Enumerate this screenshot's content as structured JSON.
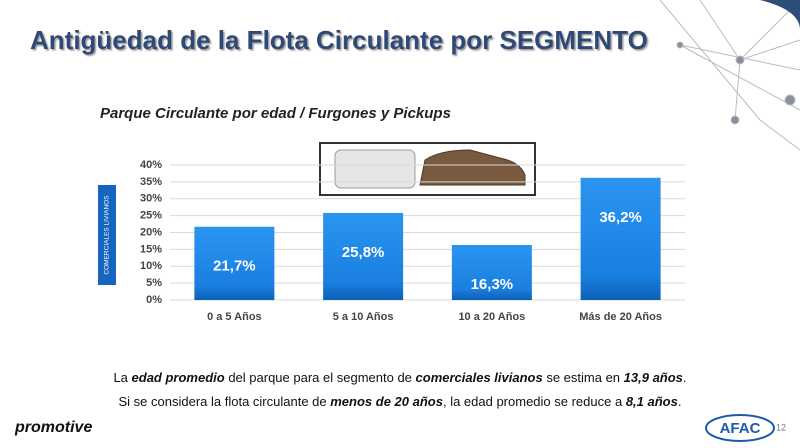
{
  "slide_title": "Antigüedad de la Flota Circulante por SEGMENTO",
  "chart_data": {
    "type": "bar",
    "title": "Parque Circulante por edad / Furgones y Pickups",
    "ylabel": "COMERCIALES LIVIANOS",
    "categories": [
      "0 a 5 Años",
      "5 a 10 Años",
      "10 a 20 Años",
      "Más de 20 Años"
    ],
    "values": [
      21.7,
      25.8,
      16.3,
      36.2
    ],
    "value_labels": [
      "21,7%",
      "25,8%",
      "16,3%",
      "36,2%"
    ],
    "color": "#1e88e5",
    "ylim": [
      0,
      40
    ],
    "yticks": [
      {
        "value": 0,
        "label": "0%"
      },
      {
        "value": 5,
        "label": "5%"
      },
      {
        "value": 10,
        "label": "10%"
      },
      {
        "value": 15,
        "label": "15%"
      },
      {
        "value": 20,
        "label": "20%"
      },
      {
        "value": 25,
        "label": "25%"
      },
      {
        "value": 30,
        "label": "30%"
      },
      {
        "value": 35,
        "label": "35%"
      },
      {
        "value": 40,
        "label": "40%"
      }
    ],
    "grid": true
  },
  "notes": [
    [
      "La ",
      "edad promedio",
      " del parque para el segmento de ",
      "comerciales livianos",
      " se estima en ",
      "13,9 años",
      "."
    ],
    [
      "Si se considera la flota circulante de ",
      "menos de 20 años",
      ", la edad promedio se reduce a ",
      "8,1 años",
      "."
    ]
  ],
  "footer": {
    "brand": "promotive",
    "logo": "AFAC",
    "page": "12"
  }
}
